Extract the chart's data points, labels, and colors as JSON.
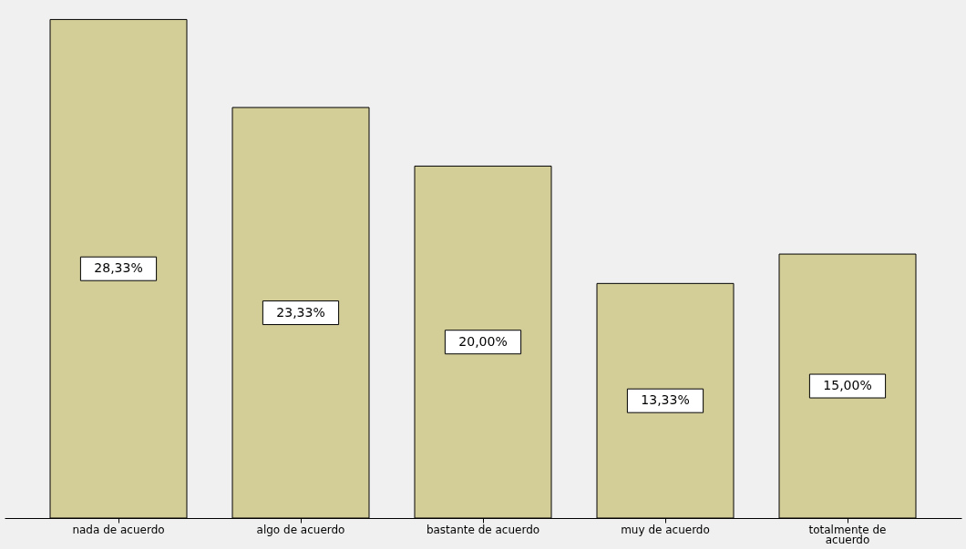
{
  "chart_data": {
    "type": "bar",
    "categories": [
      "nada de acuerdo",
      "algo de acuerdo",
      "bastante de acuerdo",
      "muy de acuerdo",
      "totalmente de acuerdo"
    ],
    "values": [
      28.33,
      23.33,
      20.0,
      13.33,
      15.0
    ],
    "value_labels": [
      "28,33%",
      "23,33%",
      "20,00%",
      "13,33%",
      "15,00%"
    ],
    "color": "#d3cd98",
    "grid": false
  }
}
